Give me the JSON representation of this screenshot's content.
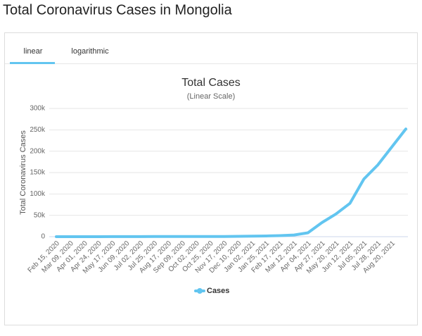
{
  "page_title": "Total Coronavirus Cases in Mongolia",
  "tabs": [
    "linear",
    "logarithmic"
  ],
  "chart_data": {
    "type": "line",
    "title": "Total Cases",
    "subtitle": "(Linear Scale)",
    "y_label": "Total Coronavirus Cases",
    "categories": [
      "Feb 15, 2020",
      "Mar 09, 2020",
      "Apr 01, 2020",
      "Apr 24, 2020",
      "May 17, 2020",
      "Jun 09, 2020",
      "Jul 02, 2020",
      "Jul 25, 2020",
      "Aug 17, 2020",
      "Sep 09, 2020",
      "Oct 02, 2020",
      "Oct 25, 2020",
      "Nov 17, 2020",
      "Dec 10, 2020",
      "Jan 02, 2021",
      "Jan 25, 2021",
      "Feb 17, 2021",
      "Mar 12, 2021",
      "Apr 04, 2021",
      "Apr 27, 2021",
      "May 20, 2021",
      "Jun 12, 2021",
      "Jul 05, 2021",
      "Jul 28, 2021",
      "Aug 20, 2021",
      null
    ],
    "series": [
      {
        "name": "Cases",
        "color": "#62c5f0",
        "values": [
          0,
          0,
          14,
          36,
          140,
          193,
          220,
          287,
          298,
          311,
          313,
          346,
          427,
          845,
          1242,
          1584,
          2550,
          4000,
          9000,
          33000,
          53000,
          78000,
          135000,
          168000,
          210000,
          252000
        ]
      }
    ],
    "ylim": [
      0,
      300000
    ],
    "yticks": [
      0,
      {
        "value": 50000,
        "label": "50k"
      },
      {
        "value": 100000,
        "label": "100k"
      },
      {
        "value": 150000,
        "label": "150k"
      },
      {
        "value": 200000,
        "label": "200k"
      },
      {
        "value": 250000,
        "label": "250k"
      },
      {
        "value": 300000,
        "label": "300k"
      }
    ],
    "grid": true
  }
}
